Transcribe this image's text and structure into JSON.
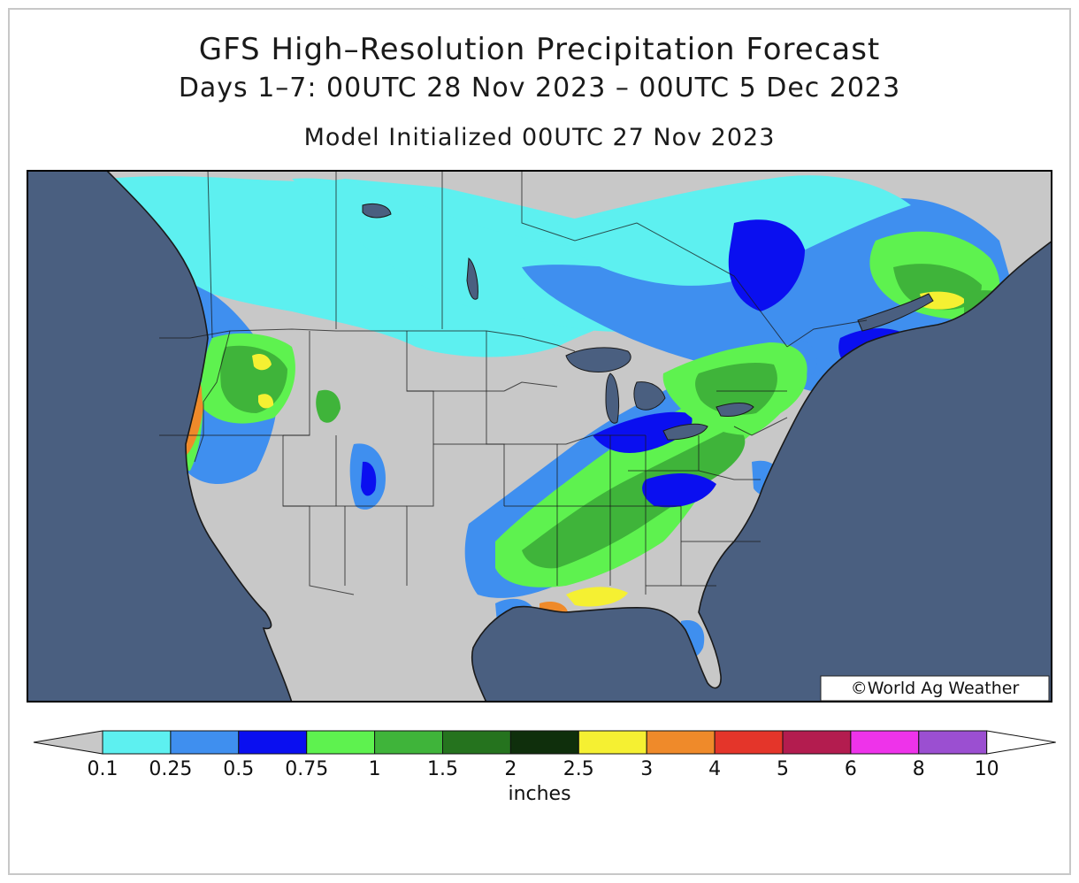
{
  "title": "GFS High–Resolution Precipitation Forecast",
  "subtitle": "Days 1–7: 00UTC 28 Nov 2023 – 00UTC 5 Dec 2023",
  "init_line": "Model Initialized 00UTC 27 Nov 2023",
  "credit": "©World Ag Weather",
  "legend": {
    "unit_label": "inches",
    "ticks": [
      "0.1",
      "0.25",
      "0.5",
      "0.75",
      "1",
      "1.5",
      "2",
      "2.5",
      "3",
      "4",
      "5",
      "6",
      "8",
      "10"
    ],
    "colors": [
      "#5df0f0",
      "#3f8fef",
      "#0a0ff0",
      "#5ef24f",
      "#3fb43a",
      "#25731e",
      "#0f2f0c",
      "#f5f032",
      "#ef8a2a",
      "#e4352a",
      "#b31c4f",
      "#ee33ea",
      "#9b4fd1"
    ],
    "under_color": "#c8c8c8",
    "over_color": "#ffffff"
  },
  "colors": {
    "ocean": "#4a5f80",
    "land": "#c8c8c8",
    "lakes": "#4a5f80",
    "boundaries": "#1a1a1a"
  }
}
